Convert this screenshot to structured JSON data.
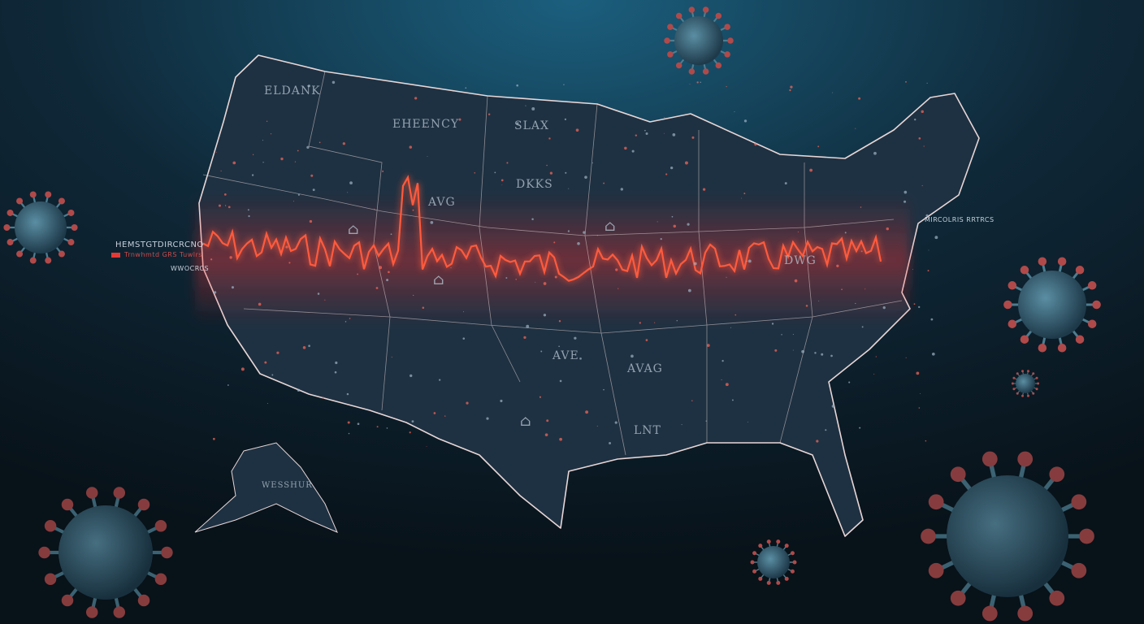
{
  "colors": {
    "background": "#0b1a26",
    "map_fill": "#1e3142",
    "border": "#e8d6d6",
    "pulse": "#ff5a3c",
    "glow": "#ff2a2a",
    "virus": "#3c6a80"
  },
  "legend": {
    "title": "HEMSTGTDIRCRCNO",
    "entry": "Trnwhmtd GRS Tuwlrs",
    "sub": "WWOCRCS",
    "swatch_color": "#e53935"
  },
  "east_label": "MIRCOLRIS RRTRCS",
  "state_labels": [
    "ELDANK",
    "EHEENCY",
    "SLAX",
    "DKKS",
    "AVG",
    "DWG",
    "AVE",
    "AVAG",
    "LNT",
    "WESSHUR"
  ],
  "icons": [
    "house-icon",
    "house-icon",
    "house-icon",
    "house-icon",
    "virus-icon"
  ]
}
